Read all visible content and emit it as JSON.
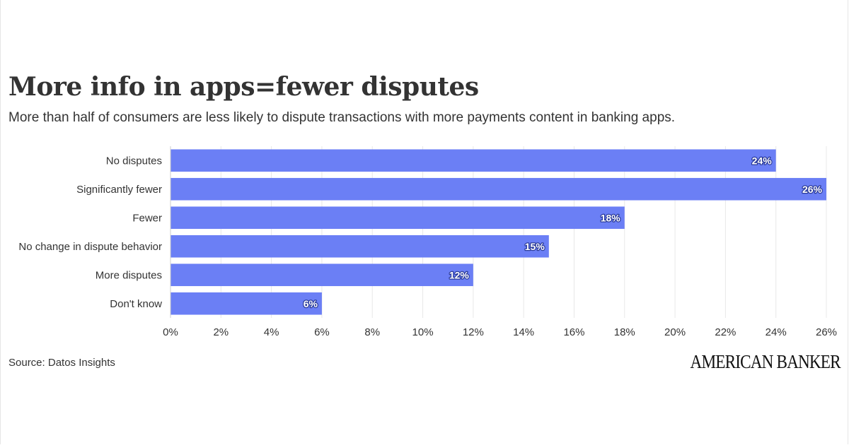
{
  "header": {
    "title": "More info in apps=fewer disputes",
    "subtitle": "More than half of consumers are less likely to dispute transactions with more payments content in banking apps."
  },
  "footer": {
    "source": "Source: Datos Insights",
    "logo_text": "AMERICAN BANKER"
  },
  "colors": {
    "bar": "#6b7ff5",
    "grid": "#e8e8e8",
    "text": "#333333"
  },
  "chart_data": {
    "type": "bar",
    "orientation": "horizontal",
    "categories": [
      "No disputes",
      "Significantly fewer",
      "Fewer",
      "No change in dispute behavior",
      "More disputes",
      "Don't know"
    ],
    "values": [
      24,
      26,
      18,
      15,
      12,
      6
    ],
    "data_labels": [
      "24%",
      "26%",
      "18%",
      "15%",
      "12%",
      "6%"
    ],
    "xlim": [
      0,
      26
    ],
    "x_ticks": [
      0,
      2,
      4,
      6,
      8,
      10,
      12,
      14,
      16,
      18,
      20,
      22,
      24,
      26
    ],
    "x_tick_labels": [
      "0%",
      "2%",
      "4%",
      "6%",
      "8%",
      "10%",
      "12%",
      "14%",
      "16%",
      "18%",
      "20%",
      "22%",
      "24%",
      "26%"
    ],
    "grid": true,
    "legend": "none"
  }
}
